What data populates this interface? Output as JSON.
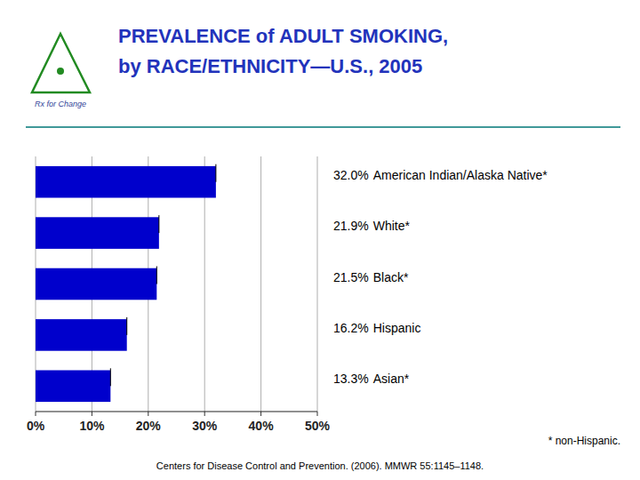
{
  "chart_data": {
    "type": "bar",
    "orientation": "horizontal",
    "title": "PREVALENCE of ADULT SMOKING,",
    "subtitle": "by RACE/ETHNICITY—U.S., 2005",
    "categories": [
      "American Indian/Alaska Native*",
      "White*",
      "Black*",
      "Hispanic",
      "Asian*"
    ],
    "values": [
      32.0,
      21.9,
      21.5,
      16.2,
      13.3
    ],
    "value_labels": [
      "32.0%",
      "21.9%",
      "21.5%",
      "16.2%",
      "13.3%"
    ],
    "data_labels": true,
    "color": "#0000cc",
    "xlim": [
      0,
      50
    ],
    "xticks": [
      {
        "value": 0,
        "label": "0%"
      },
      {
        "value": 10,
        "label": "10%"
      },
      {
        "value": 20,
        "label": "20%"
      },
      {
        "value": 30,
        "label": "30%"
      },
      {
        "value": 40,
        "label": "40%"
      },
      {
        "value": 50,
        "label": "50%"
      }
    ],
    "grid": true,
    "tick_labels": "x",
    "annotations": [
      "* non-Hispanic.",
      "Centers for Disease Control and Prevention. (2006). MMWR 55:1145–1148.",
      "Rx for Change"
    ]
  }
}
